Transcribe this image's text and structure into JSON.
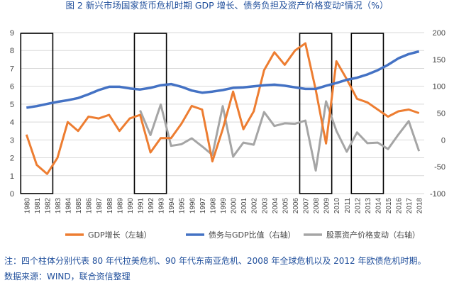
{
  "chart_data": {
    "type": "line",
    "title": "图 2 新兴市场国家货币危机时期 GDP 增长、债务负担及资产价格变动²情况（%）",
    "categories": [
      "1980",
      "1981",
      "1982",
      "1983",
      "1984",
      "1985",
      "1986",
      "1987",
      "1988",
      "1989",
      "1990",
      "1991",
      "1992",
      "1993",
      "1994",
      "1995",
      "1996",
      "1997",
      "1998",
      "1999",
      "2000",
      "2001",
      "2002",
      "2003",
      "2004",
      "2005",
      "2006",
      "2007",
      "2008",
      "2009",
      "2010",
      "2011",
      "2012",
      "2013",
      "2014",
      "2015",
      "2016",
      "2017",
      "2018"
    ],
    "series": [
      {
        "name": "GDP增长（左轴）",
        "color": "#ED7D31",
        "axis": "y",
        "values": [
          3.3,
          1.6,
          1.1,
          2.0,
          4.0,
          3.5,
          4.3,
          4.2,
          4.4,
          3.5,
          4.2,
          4.4,
          2.3,
          3.1,
          3.1,
          3.9,
          4.9,
          4.7,
          1.8,
          3.6,
          5.7,
          3.6,
          4.6,
          6.9,
          7.9,
          7.2,
          8.0,
          8.4,
          5.8,
          2.8,
          7.4,
          6.4,
          5.3,
          5.1,
          4.7,
          4.3,
          4.6,
          4.7,
          4.5
        ]
      },
      {
        "name": "债务与GDP比值（右轴）",
        "color": "#4472C4",
        "axis": "y2",
        "values": [
          60,
          63,
          67,
          71,
          74,
          78,
          85,
          93,
          99,
          99,
          96,
          94,
          97,
          102,
          104,
          99,
          92,
          88,
          90,
          93,
          97,
          98,
          100,
          102,
          103,
          101,
          98,
          95,
          95,
          101,
          106,
          112,
          116,
          122,
          130,
          140,
          152,
          160,
          165
        ]
      },
      {
        "name": "股票资产价格变动（右轴）",
        "color": "#A5A5A5",
        "axis": "y2",
        "values": [
          null,
          null,
          null,
          null,
          null,
          null,
          null,
          null,
          null,
          null,
          null,
          55,
          9,
          66,
          -11,
          -8,
          3,
          -12,
          -28,
          63,
          -31,
          -5,
          -9,
          52,
          26,
          31,
          30,
          36,
          -57,
          72,
          17,
          -22,
          14,
          -6,
          -5,
          -17,
          10,
          35,
          -21
        ]
      }
    ],
    "ylim": [
      0,
      9
    ],
    "yticks": [
      0,
      1,
      2,
      3,
      4,
      5,
      6,
      7,
      8,
      9
    ],
    "y2lim": [
      -100,
      200
    ],
    "y2ticks": [
      -100,
      -50,
      0,
      50,
      100,
      150,
      200
    ],
    "grid": true,
    "highlights": [
      [
        "1980",
        "1982"
      ],
      [
        "1991",
        "1993"
      ],
      [
        "2007",
        "2009"
      ],
      [
        "2012",
        "2014"
      ]
    ],
    "notes": [
      "注：四个柱体分别代表 80 年代拉美危机、90 年代东南亚危机、2008 年全球危机以及 2012 年欧债危机时期。",
      "数据来源：WIND，联合资信整理"
    ]
  }
}
